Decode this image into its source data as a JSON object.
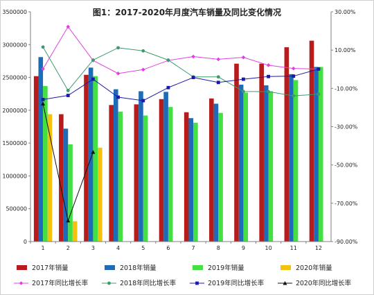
{
  "chart_data": {
    "type": "bar",
    "title": "图1：2017-2020年月度汽车销量及同比变化情况",
    "categories": [
      "1",
      "2",
      "3",
      "4",
      "5",
      "6",
      "7",
      "8",
      "9",
      "10",
      "11",
      "12"
    ],
    "y_left": {
      "lim": [
        0,
        3500000
      ],
      "ticks": [
        "0",
        "500000",
        "1000000",
        "1500000",
        "2000000",
        "2500000",
        "3000000",
        "3500000"
      ]
    },
    "y_right": {
      "lim": [
        -90,
        30
      ],
      "unit": "%",
      "ticks": [
        "-90.00%",
        "-70.00%",
        "-50.00%",
        "-30.00%",
        "-10.00%",
        "10.00%",
        "30.00%"
      ]
    },
    "bar_series": [
      {
        "name": "2017年销量",
        "color": "#b71c1c",
        "values": [
          2520000,
          1940000,
          2540000,
          2080000,
          2090000,
          2170000,
          1970000,
          2180000,
          2710000,
          2710000,
          2960000,
          3060000
        ]
      },
      {
        "name": "2018年销量",
        "color": "#1e6bb8",
        "values": [
          2810000,
          1720000,
          2650000,
          2320000,
          2290000,
          2280000,
          1880000,
          2100000,
          2390000,
          2380000,
          2550000,
          2660000
        ]
      },
      {
        "name": "2019年销量",
        "color": "#43e043",
        "values": [
          2370000,
          1480000,
          2520000,
          1980000,
          1920000,
          2050000,
          1810000,
          1960000,
          2270000,
          2290000,
          2460000,
          2660000
        ]
      },
      {
        "name": "2020年销量",
        "color": "#f4c20d",
        "values": [
          1940000,
          310000,
          1430000,
          null,
          null,
          null,
          null,
          null,
          null,
          null,
          null,
          null
        ]
      }
    ],
    "line_series": [
      {
        "name": "2017年同比增长率",
        "color": "#e040e0",
        "marker": "diamond",
        "values": [
          0.2,
          22.2,
          4.6,
          -2.2,
          -0.2,
          4.6,
          6.6,
          5.2,
          6.2,
          2.1,
          0.4,
          0.1
        ]
      },
      {
        "name": "2018年同比增长率",
        "color": "#3c9a6c",
        "marker": "circle",
        "values": [
          11.6,
          -11.1,
          4.8,
          11.2,
          9.6,
          4.8,
          -4.0,
          -4.0,
          -11.6,
          -11.7,
          -13.9,
          -13.0
        ]
      },
      {
        "name": "2019年同比增长率",
        "color": "#1a1aa8",
        "marker": "square",
        "values": [
          -15.8,
          -13.7,
          -5.2,
          -14.6,
          -16.4,
          -9.6,
          -4.3,
          -6.9,
          -5.2,
          -3.8,
          -3.6,
          0.1
        ]
      },
      {
        "name": "2020年同比增长率",
        "color": "#111111",
        "marker": "triangle",
        "values": [
          -18.0,
          -79.1,
          -43.3,
          null,
          null,
          null,
          null,
          null,
          null,
          null,
          null,
          null
        ]
      }
    ],
    "grid": false,
    "legend": "bottom"
  }
}
